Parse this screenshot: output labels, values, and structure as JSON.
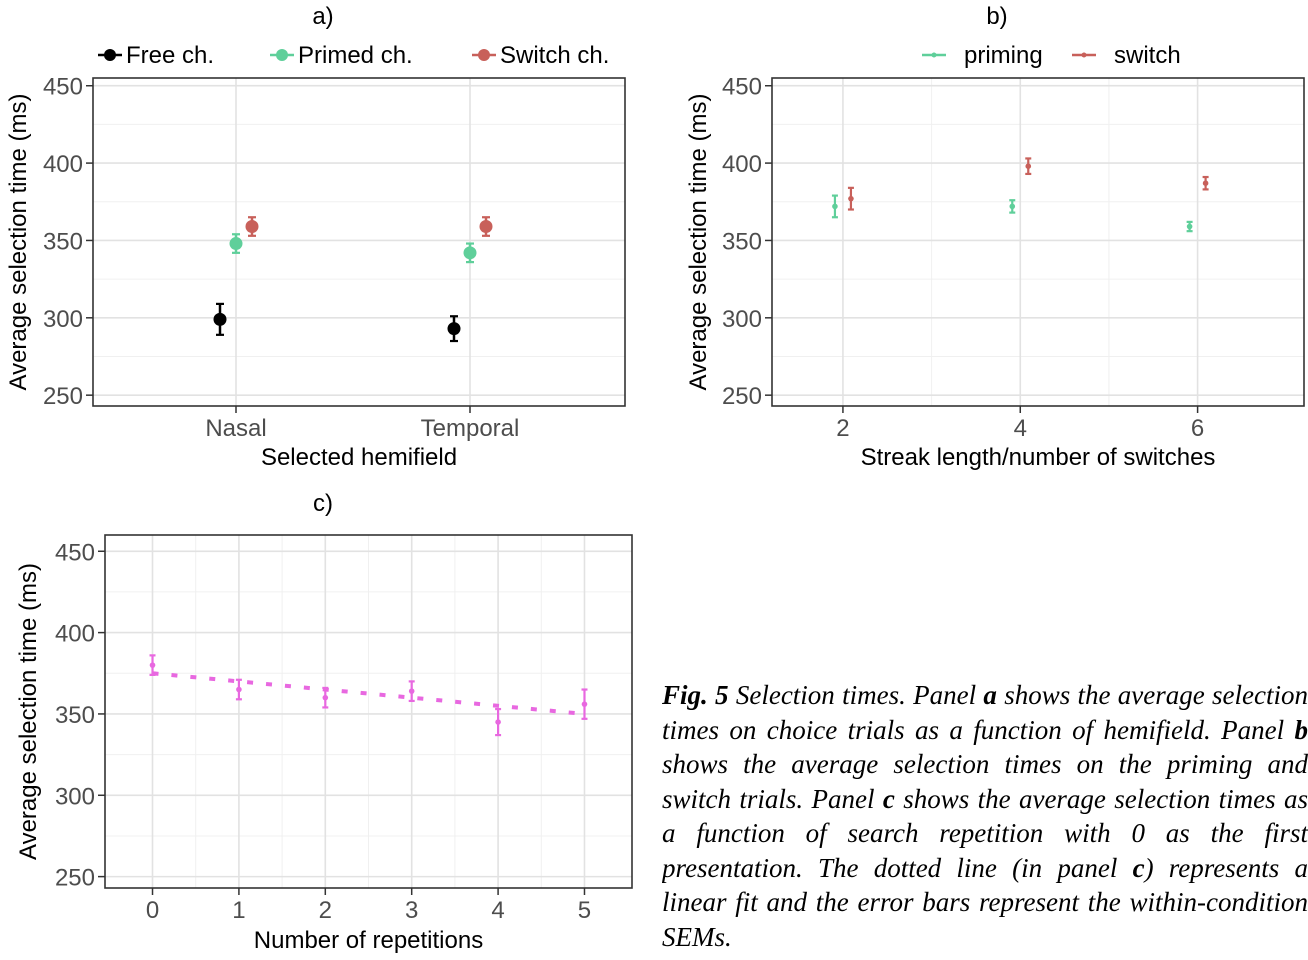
{
  "chart_data": [
    {
      "type": "scatter",
      "title": "a)",
      "xlabel": "Selected hemifield",
      "ylabel": "Average selection time (ms)",
      "categories": [
        "Nasal",
        "Temporal"
      ],
      "yticks": [
        250,
        300,
        350,
        400,
        450
      ],
      "ylim": [
        243,
        455
      ],
      "grid": true,
      "legend": "top",
      "series": [
        {
          "name": "Free ch.",
          "color": "#000000",
          "values": [
            299,
            293
          ],
          "err": [
            10,
            8
          ]
        },
        {
          "name": "Primed ch.",
          "color": "#5fcf9a",
          "values": [
            348,
            342
          ],
          "err": [
            6,
            6
          ]
        },
        {
          "name": "Switch ch.",
          "color": "#c8605a",
          "values": [
            359,
            359
          ],
          "err": [
            6,
            6
          ]
        }
      ]
    },
    {
      "type": "scatter",
      "title": "b)",
      "xlabel": "Streak length/number of switches",
      "ylabel": "Average selection time (ms)",
      "xticks": [
        2,
        4,
        6
      ],
      "xlim": [
        1.2,
        7.2
      ],
      "yticks": [
        250,
        300,
        350,
        400,
        450
      ],
      "ylim": [
        243,
        455
      ],
      "grid": true,
      "legend": "top",
      "series": [
        {
          "name": "priming",
          "color": "#5fcf9a",
          "x": [
            2,
            4,
            6
          ],
          "values": [
            372,
            372,
            359
          ],
          "err": [
            7,
            4,
            3
          ]
        },
        {
          "name": "switch",
          "color": "#c8605a",
          "x": [
            2,
            4,
            6
          ],
          "values": [
            377,
            398,
            387
          ],
          "err": [
            7,
            5,
            4
          ]
        }
      ]
    },
    {
      "type": "scatter",
      "title": "c)",
      "xlabel": "Number of repetitions",
      "ylabel": "Average selection time (ms)",
      "xticks": [
        0,
        1,
        2,
        3,
        4,
        5
      ],
      "xlim": [
        -0.55,
        5.55
      ],
      "yticks": [
        250,
        300,
        350,
        400,
        450
      ],
      "ylim": [
        243,
        460
      ],
      "grid": true,
      "series": [
        {
          "color": "#e868e0",
          "x": [
            0,
            1,
            2,
            3,
            4,
            5
          ],
          "values": [
            380,
            365,
            360,
            364,
            345,
            356
          ],
          "err": [
            6,
            6,
            6,
            6,
            8,
            9
          ]
        }
      ],
      "fit": {
        "x": [
          0,
          5
        ],
        "y": [
          375,
          350
        ],
        "style": "dotted",
        "color": "#e868e0"
      }
    }
  ],
  "caption": {
    "label": "Fig. 5",
    "text_1": " Selection times. Panel ",
    "a": "a",
    "text_2": " shows the average selection times on choice trials as a function of hemifield. Panel ",
    "b": "b",
    "text_3": " shows the average selection times on the priming and switch trials. Panel ",
    "c": "c",
    "text_4": " shows the average selection times as a function of search repetition with 0 as the first presentation. The dotted line (in panel ",
    "c2": "c",
    "text_5": ") represents a linear fit and the error bars represent the within-condition SEMs."
  }
}
